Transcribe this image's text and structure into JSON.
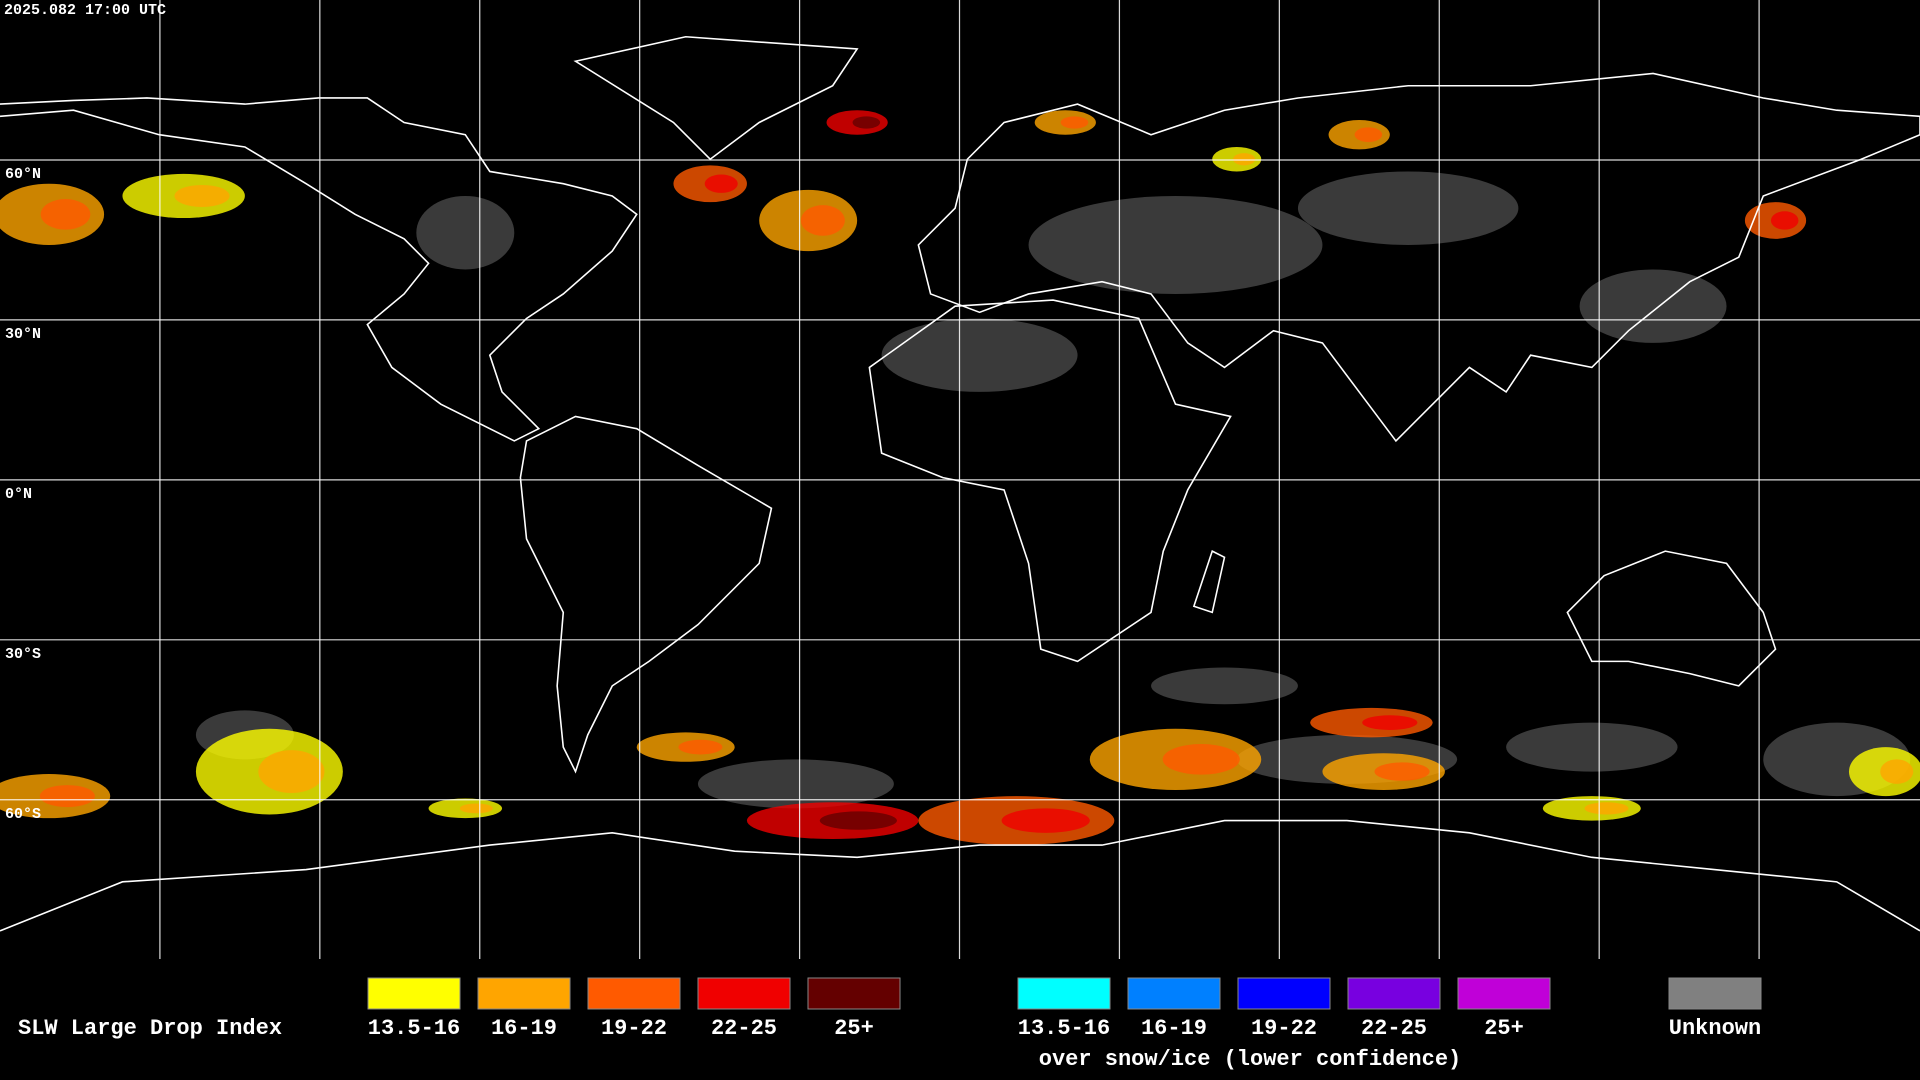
{
  "timestamp": "2025.082 17:00 UTC",
  "map": {
    "latitude_labels": [
      "60°N",
      "30°N",
      "0°N",
      "30°S",
      "60°S"
    ]
  },
  "legend": {
    "title": "SLW Large Drop Index",
    "categories": [
      {
        "label": "13.5-16",
        "color": "#ffff00"
      },
      {
        "label": "16-19",
        "color": "#ffa500"
      },
      {
        "label": "19-22",
        "color": "#ff5a00"
      },
      {
        "label": "22-25",
        "color": "#f00000"
      },
      {
        "label": "25+",
        "color": "#640000"
      }
    ],
    "snow_ice": {
      "categories": [
        {
          "label": "13.5-16",
          "color": "#00ffff"
        },
        {
          "label": "16-19",
          "color": "#0080ff"
        },
        {
          "label": "19-22",
          "color": "#0000ff"
        },
        {
          "label": "22-25",
          "color": "#7800e0"
        },
        {
          "label": "25+",
          "color": "#c000d8"
        }
      ],
      "note": "over snow/ice (lower confidence)"
    },
    "unknown": {
      "label": "Unknown",
      "color": "#808080"
    }
  }
}
